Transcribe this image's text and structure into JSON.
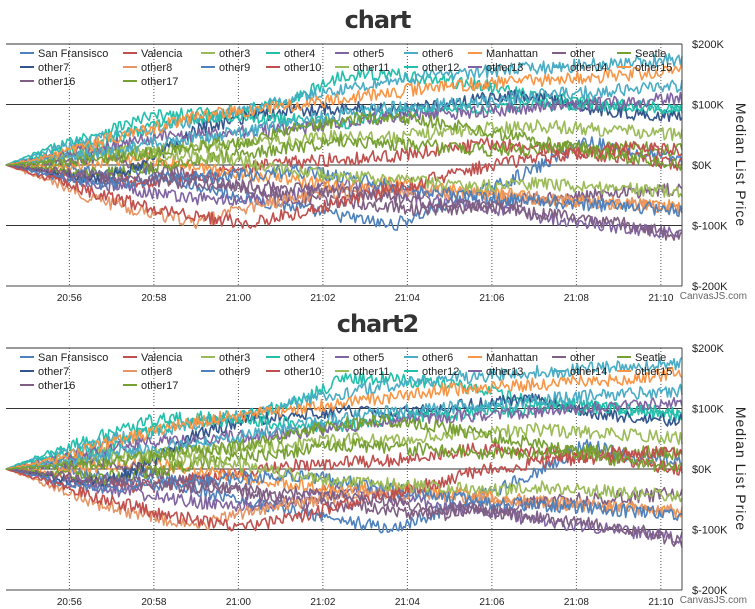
{
  "colors": [
    "#4F81BC",
    "#C0504E",
    "#9BBB58",
    "#23BFAA",
    "#8064A1",
    "#4AACC5",
    "#F79647",
    "#7F6084",
    "#77A033",
    "#33558B",
    "#E59566",
    "#4F81BC",
    "#C0504E",
    "#9BBB58",
    "#23BFAA",
    "#8064A1",
    "#4AACC5",
    "#F79647",
    "#7F6084",
    "#77A033"
  ],
  "chart_data": [
    {
      "type": "line",
      "title": "chart",
      "ylabel": "Median List Price",
      "y_axis_side": "right",
      "ylim": [
        -200000,
        200000
      ],
      "y_ticks": [
        -200000,
        -100000,
        0,
        100000,
        200000
      ],
      "y_tick_labels": [
        "$-200K",
        "$-100K",
        "$0K",
        "$100K",
        "$200K"
      ],
      "x_range": [
        "20:54:30",
        "21:10:30"
      ],
      "x_ticks": [
        "20:56",
        "20:58",
        "21:00",
        "21:02",
        "21:04",
        "21:06",
        "21:08",
        "21:10"
      ],
      "legend_position": "top-left",
      "grid": "horizontal solid, vertical dotted",
      "credit": "CanvasJS.com",
      "series": [
        {
          "name": "San Fransisco",
          "values": [
            0,
            8000,
            -15000,
            -10000,
            -35000,
            -55000,
            -70000,
            -85000,
            -100000,
            -70000,
            -40000,
            -5000,
            40000,
            20000,
            10000
          ]
        },
        {
          "name": "Valencia",
          "values": [
            0,
            -12000,
            -25000,
            -30000,
            -15000,
            -5000,
            5000,
            10000,
            15000,
            25000,
            35000,
            30000,
            20000,
            10000,
            0
          ]
        },
        {
          "name": "other3",
          "values": [
            0,
            15000,
            20000,
            25000,
            30000,
            35000,
            40000,
            50000,
            45000,
            55000,
            60000,
            65000,
            60000,
            55000,
            50000
          ]
        },
        {
          "name": "other4",
          "values": [
            0,
            30000,
            55000,
            80000,
            85000,
            90000,
            110000,
            150000,
            150000,
            140000,
            130000,
            110000,
            105000,
            95000,
            90000
          ]
        },
        {
          "name": "other5",
          "values": [
            0,
            -18000,
            -30000,
            -45000,
            -55000,
            -60000,
            -50000,
            -30000,
            -45000,
            -60000,
            -70000,
            -85000,
            -95000,
            -105000,
            -115000
          ]
        },
        {
          "name": "other6",
          "values": [
            0,
            25000,
            45000,
            60000,
            75000,
            90000,
            110000,
            125000,
            140000,
            150000,
            155000,
            160000,
            165000,
            170000,
            175000
          ]
        },
        {
          "name": "Manhattan",
          "values": [
            0,
            -5000,
            5000,
            10000,
            -5000,
            -15000,
            -25000,
            -35000,
            -30000,
            -40000,
            -45000,
            -55000,
            -60000,
            -65000,
            -70000
          ]
        },
        {
          "name": "other",
          "values": [
            0,
            5000,
            15000,
            -5000,
            -20000,
            -40000,
            -55000,
            -60000,
            -70000,
            -75000,
            -65000,
            -55000,
            -50000,
            -45000,
            -40000
          ]
        },
        {
          "name": "Seatle",
          "values": [
            0,
            -8000,
            -15000,
            -5000,
            10000,
            20000,
            30000,
            40000,
            35000,
            30000,
            25000,
            25000,
            30000,
            28000,
            25000
          ]
        },
        {
          "name": "other7",
          "values": [
            0,
            -15000,
            -25000,
            10000,
            60000,
            80000,
            90000,
            95000,
            90000,
            100000,
            110000,
            115000,
            95000,
            85000,
            80000
          ]
        },
        {
          "name": "other8",
          "values": [
            0,
            -30000,
            -60000,
            -80000,
            -95000,
            -70000,
            -55000,
            -45000,
            -40000,
            -45000,
            -50000,
            -55000,
            -60000,
            -65000,
            -70000
          ]
        },
        {
          "name": "other9",
          "values": [
            0,
            -20000,
            -30000,
            -25000,
            -20000,
            -15000,
            -10000,
            -20000,
            -35000,
            -45000,
            -55000,
            -60000,
            -65000,
            -70000,
            -75000
          ]
        },
        {
          "name": "other10",
          "values": [
            0,
            -25000,
            -50000,
            -70000,
            -85000,
            -95000,
            -80000,
            -60000,
            -40000,
            -20000,
            0,
            10000,
            20000,
            30000,
            25000
          ]
        },
        {
          "name": "other11",
          "values": [
            0,
            10000,
            25000,
            20000,
            15000,
            5000,
            -10000,
            -20000,
            -25000,
            -30000,
            -35000,
            -30000,
            -35000,
            -40000,
            -45000
          ]
        },
        {
          "name": "other12",
          "values": [
            0,
            20000,
            35000,
            65000,
            80000,
            80000,
            75000,
            70000,
            85000,
            90000,
            95000,
            100000,
            100000,
            100000,
            95000
          ]
        },
        {
          "name": "other13",
          "values": [
            0,
            15000,
            30000,
            45000,
            50000,
            55000,
            60000,
            70000,
            80000,
            85000,
            90000,
            95000,
            100000,
            105000,
            110000
          ]
        },
        {
          "name": "other14",
          "values": [
            0,
            10000,
            20000,
            35000,
            45000,
            55000,
            70000,
            85000,
            95000,
            100000,
            105000,
            115000,
            120000,
            125000,
            130000
          ]
        },
        {
          "name": "other15",
          "values": [
            0,
            15000,
            40000,
            60000,
            80000,
            90000,
            100000,
            110000,
            120000,
            130000,
            135000,
            140000,
            145000,
            150000,
            160000
          ]
        },
        {
          "name": "other16",
          "values": [
            0,
            -10000,
            -20000,
            -25000,
            -30000,
            -35000,
            -40000,
            -45000,
            -55000,
            -65000,
            -70000,
            -80000,
            -90000,
            -100000,
            -120000
          ]
        },
        {
          "name": "other17",
          "values": [
            0,
            5000,
            10000,
            20000,
            30000,
            40000,
            60000,
            75000,
            80000,
            70000,
            55000,
            40000,
            25000,
            10000,
            0
          ]
        }
      ]
    },
    {
      "type": "line",
      "title": "chart2",
      "ylabel": "Median List Price",
      "y_axis_side": "right",
      "ylim": [
        -200000,
        200000
      ],
      "y_ticks": [
        -200000,
        -100000,
        0,
        100000,
        200000
      ],
      "y_tick_labels": [
        "$-200K",
        "$-100K",
        "$0K",
        "$100K",
        "$200K"
      ],
      "x_range": [
        "20:54:30",
        "21:10:30"
      ],
      "x_ticks": [
        "20:56",
        "20:58",
        "21:00",
        "21:02",
        "21:04",
        "21:06",
        "21:08",
        "21:10"
      ],
      "legend_position": "top-left",
      "grid": "horizontal solid, vertical dotted",
      "credit": "CanvasJS.com",
      "series": [
        {
          "name": "San Fransisco",
          "values": [
            0,
            8000,
            -15000,
            -10000,
            -35000,
            -55000,
            -70000,
            -85000,
            -100000,
            -70000,
            -40000,
            -5000,
            40000,
            20000,
            10000
          ]
        },
        {
          "name": "Valencia",
          "values": [
            0,
            -12000,
            -25000,
            -30000,
            -15000,
            -5000,
            5000,
            10000,
            15000,
            25000,
            35000,
            30000,
            20000,
            10000,
            0
          ]
        },
        {
          "name": "other3",
          "values": [
            0,
            15000,
            20000,
            25000,
            30000,
            35000,
            40000,
            50000,
            45000,
            55000,
            60000,
            65000,
            60000,
            55000,
            50000
          ]
        },
        {
          "name": "other4",
          "values": [
            0,
            30000,
            55000,
            80000,
            85000,
            90000,
            110000,
            150000,
            150000,
            140000,
            130000,
            110000,
            105000,
            95000,
            90000
          ]
        },
        {
          "name": "other5",
          "values": [
            0,
            -18000,
            -30000,
            -45000,
            -55000,
            -60000,
            -50000,
            -30000,
            -45000,
            -60000,
            -70000,
            -85000,
            -95000,
            -105000,
            -115000
          ]
        },
        {
          "name": "other6",
          "values": [
            0,
            25000,
            45000,
            60000,
            75000,
            90000,
            110000,
            125000,
            140000,
            150000,
            155000,
            160000,
            165000,
            170000,
            175000
          ]
        },
        {
          "name": "Manhattan",
          "values": [
            0,
            -5000,
            5000,
            10000,
            -5000,
            -15000,
            -25000,
            -35000,
            -30000,
            -40000,
            -45000,
            -55000,
            -60000,
            -65000,
            -70000
          ]
        },
        {
          "name": "other",
          "values": [
            0,
            5000,
            15000,
            -5000,
            -20000,
            -40000,
            -55000,
            -60000,
            -70000,
            -75000,
            -65000,
            -55000,
            -50000,
            -45000,
            -40000
          ]
        },
        {
          "name": "Seatle",
          "values": [
            0,
            -8000,
            -15000,
            -5000,
            10000,
            20000,
            30000,
            40000,
            35000,
            30000,
            25000,
            25000,
            30000,
            28000,
            25000
          ]
        },
        {
          "name": "other7",
          "values": [
            0,
            -15000,
            -25000,
            10000,
            60000,
            80000,
            90000,
            95000,
            90000,
            100000,
            110000,
            115000,
            95000,
            85000,
            80000
          ]
        },
        {
          "name": "other8",
          "values": [
            0,
            -30000,
            -60000,
            -80000,
            -95000,
            -70000,
            -55000,
            -45000,
            -40000,
            -45000,
            -50000,
            -55000,
            -60000,
            -65000,
            -70000
          ]
        },
        {
          "name": "other9",
          "values": [
            0,
            -20000,
            -30000,
            -25000,
            -20000,
            -15000,
            -10000,
            -20000,
            -35000,
            -45000,
            -55000,
            -60000,
            -65000,
            -70000,
            -75000
          ]
        },
        {
          "name": "other10",
          "values": [
            0,
            -25000,
            -50000,
            -70000,
            -85000,
            -95000,
            -80000,
            -60000,
            -40000,
            -20000,
            0,
            10000,
            20000,
            30000,
            25000
          ]
        },
        {
          "name": "other11",
          "values": [
            0,
            10000,
            25000,
            20000,
            15000,
            5000,
            -10000,
            -20000,
            -25000,
            -30000,
            -35000,
            -30000,
            -35000,
            -40000,
            -45000
          ]
        },
        {
          "name": "other12",
          "values": [
            0,
            20000,
            35000,
            65000,
            80000,
            80000,
            75000,
            70000,
            85000,
            90000,
            95000,
            100000,
            100000,
            100000,
            95000
          ]
        },
        {
          "name": "other13",
          "values": [
            0,
            15000,
            30000,
            45000,
            50000,
            55000,
            60000,
            70000,
            80000,
            85000,
            90000,
            95000,
            100000,
            105000,
            110000
          ]
        },
        {
          "name": "other14",
          "values": [
            0,
            10000,
            20000,
            35000,
            45000,
            55000,
            70000,
            85000,
            95000,
            100000,
            105000,
            115000,
            120000,
            125000,
            130000
          ]
        },
        {
          "name": "other15",
          "values": [
            0,
            15000,
            40000,
            60000,
            80000,
            90000,
            100000,
            110000,
            120000,
            130000,
            135000,
            140000,
            145000,
            150000,
            160000
          ]
        },
        {
          "name": "other16",
          "values": [
            0,
            -10000,
            -20000,
            -25000,
            -30000,
            -35000,
            -40000,
            -45000,
            -55000,
            -65000,
            -70000,
            -80000,
            -90000,
            -100000,
            -120000
          ]
        },
        {
          "name": "other17",
          "values": [
            0,
            5000,
            10000,
            20000,
            30000,
            40000,
            60000,
            75000,
            80000,
            70000,
            55000,
            40000,
            25000,
            10000,
            0
          ]
        }
      ]
    }
  ]
}
